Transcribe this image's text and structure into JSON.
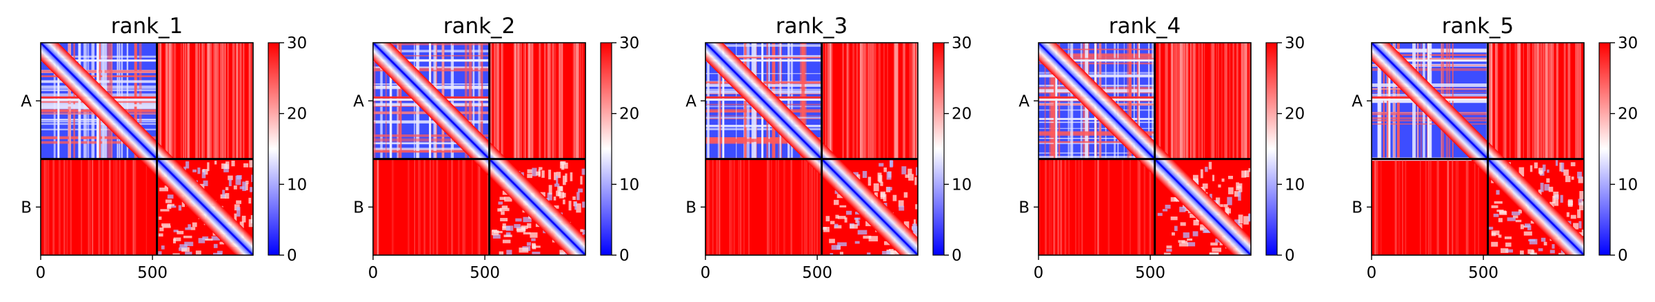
{
  "chart_data": [
    {
      "type": "heatmap",
      "title": "rank_1",
      "x_ticks": [
        "0",
        "500"
      ],
      "y_ticks": [
        "A",
        "B"
      ],
      "colorbar": {
        "ticks": [
          "0",
          "10",
          "20",
          "30"
        ],
        "min": 0,
        "max": 30,
        "colormap": "bwr"
      },
      "extent": [
        0,
        950
      ],
      "chain_boundary": 520,
      "grid": false
    },
    {
      "type": "heatmap",
      "title": "rank_2",
      "x_ticks": [
        "0",
        "500"
      ],
      "y_ticks": [
        "A",
        "B"
      ],
      "colorbar": {
        "ticks": [
          "0",
          "10",
          "20",
          "30"
        ],
        "min": 0,
        "max": 30,
        "colormap": "bwr"
      },
      "extent": [
        0,
        950
      ],
      "chain_boundary": 520,
      "grid": false
    },
    {
      "type": "heatmap",
      "title": "rank_3",
      "x_ticks": [
        "0",
        "500"
      ],
      "y_ticks": [
        "A",
        "B"
      ],
      "colorbar": {
        "ticks": [
          "0",
          "10",
          "20",
          "30"
        ],
        "min": 0,
        "max": 30,
        "colormap": "bwr"
      },
      "extent": [
        0,
        950
      ],
      "chain_boundary": 520,
      "grid": false
    },
    {
      "type": "heatmap",
      "title": "rank_4",
      "x_ticks": [
        "0",
        "500"
      ],
      "y_ticks": [
        "A",
        "B"
      ],
      "colorbar": {
        "ticks": [
          "0",
          "10",
          "20",
          "30"
        ],
        "min": 0,
        "max": 30,
        "colormap": "bwr"
      },
      "extent": [
        0,
        950
      ],
      "chain_boundary": 520,
      "grid": false
    },
    {
      "type": "heatmap",
      "title": "rank_5",
      "x_ticks": [
        "0",
        "500"
      ],
      "y_ticks": [
        "A",
        "B"
      ],
      "colorbar": {
        "ticks": [
          "0",
          "10",
          "20",
          "30"
        ],
        "min": 0,
        "max": 30,
        "colormap": "bwr"
      },
      "extent": [
        0,
        950
      ],
      "chain_boundary": 520,
      "grid": false
    }
  ],
  "colors": {
    "low": "#0000ff",
    "mid": "#ffffff",
    "high": "#ff0000",
    "frame": "#000000"
  }
}
